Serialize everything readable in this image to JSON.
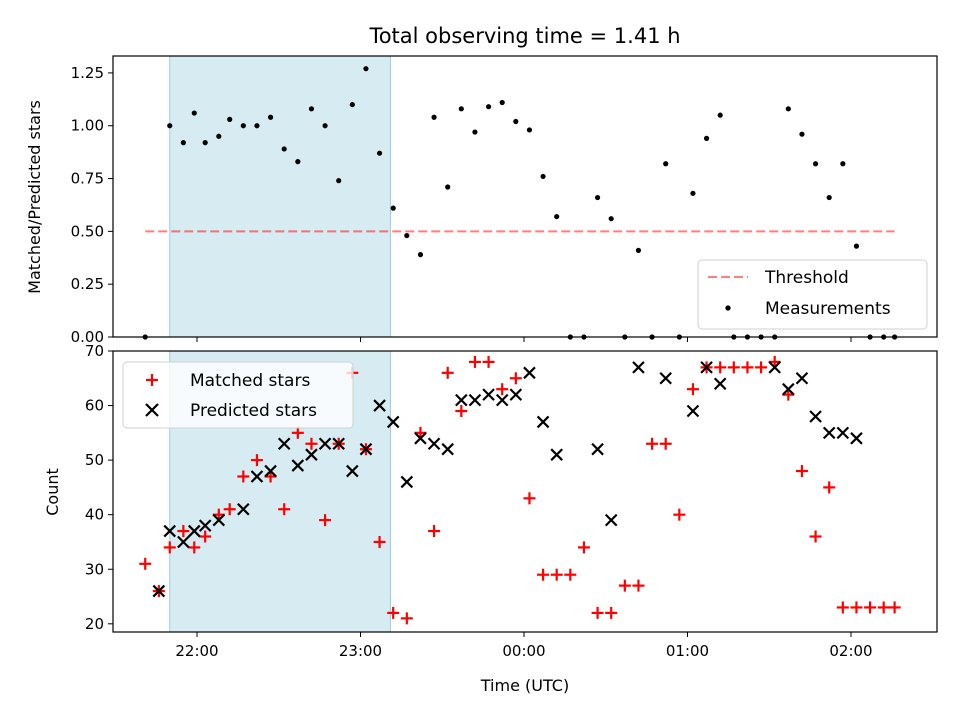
{
  "chart_data": [
    {
      "type": "scatter",
      "title": "Total observing time = 1.41 h",
      "xlabel": "",
      "ylabel": "Matched/Predicted stars",
      "ylim": [
        0,
        1.33
      ],
      "y_ticks": [
        "0.00",
        "0.25",
        "0.50",
        "0.75",
        "1.00",
        "1.25"
      ],
      "legend_placement": "lower right",
      "highlight_span": {
        "start": "21:50",
        "end": "23:11",
        "color": "#add8e6"
      },
      "threshold": {
        "name": "Threshold",
        "value": 0.5,
        "x_start": "21:41",
        "x_end": "02:16",
        "color": "#ff0000",
        "style": "dashed"
      },
      "series": [
        {
          "name": "Measurements",
          "marker": "dot",
          "color": "#000000",
          "x": [
            "21:41",
            "21:50",
            "21:55",
            "21:59",
            "22:03",
            "22:08",
            "22:12",
            "22:17",
            "22:22",
            "22:27",
            "22:32",
            "22:37",
            "22:42",
            "22:47",
            "22:52",
            "22:57",
            "23:02",
            "23:07",
            "23:12",
            "23:17",
            "23:22",
            "23:27",
            "23:32",
            "23:37",
            "23:42",
            "23:47",
            "23:52",
            "23:57",
            "00:02",
            "00:07",
            "00:12",
            "00:17",
            "00:22",
            "00:27",
            "00:32",
            "00:37",
            "00:42",
            "00:47",
            "00:52",
            "00:57",
            "01:02",
            "01:07",
            "01:12",
            "01:17",
            "01:22",
            "01:27",
            "01:32",
            "01:37",
            "01:42",
            "01:47",
            "01:52",
            "01:57",
            "02:02",
            "02:07",
            "02:12",
            "02:16"
          ],
          "y": [
            0.0,
            1.0,
            0.92,
            1.06,
            0.92,
            0.95,
            1.03,
            1.0,
            1.0,
            1.04,
            0.89,
            0.83,
            1.08,
            1.0,
            0.74,
            1.1,
            1.27,
            0.87,
            0.61,
            0.48,
            0.39,
            1.04,
            0.71,
            1.08,
            0.97,
            1.09,
            1.11,
            1.02,
            0.98,
            0.76,
            0.57,
            0.0,
            0.0,
            0.66,
            0.56,
            0.0,
            0.41,
            0.0,
            0.82,
            0.0,
            0.68,
            0.94,
            1.05,
            0.0,
            0.0,
            0.0,
            0.0,
            1.08,
            0.96,
            0.82,
            0.66,
            0.82,
            0.43,
            0.0,
            0.0,
            0.0
          ]
        }
      ]
    },
    {
      "type": "scatter",
      "title": "",
      "xlabel": "Time (UTC)",
      "ylabel": "Count",
      "ylim": [
        18.5,
        70
      ],
      "y_ticks": [
        "20",
        "30",
        "40",
        "50",
        "60",
        "70"
      ],
      "x_ticks": [
        "22:00",
        "23:00",
        "00:00",
        "01:00",
        "02:00"
      ],
      "legend_placement": "upper left",
      "highlight_span": {
        "start": "21:50",
        "end": "23:11",
        "color": "#add8e6"
      },
      "series": [
        {
          "name": "Matched stars",
          "marker": "plus",
          "color": "#ff0000",
          "x": [
            "21:41",
            "21:46",
            "21:50",
            "21:55",
            "21:59",
            "22:03",
            "22:08",
            "22:12",
            "22:17",
            "22:22",
            "22:27",
            "22:32",
            "22:37",
            "22:42",
            "22:47",
            "22:52",
            "22:57",
            "23:02",
            "23:07",
            "23:12",
            "23:17",
            "23:22",
            "23:27",
            "23:32",
            "23:37",
            "23:42",
            "23:47",
            "23:52",
            "23:57",
            "00:02",
            "00:07",
            "00:12",
            "00:17",
            "00:22",
            "00:27",
            "00:32",
            "00:37",
            "00:42",
            "00:47",
            "00:52",
            "00:57",
            "01:02",
            "01:07",
            "01:12",
            "01:17",
            "01:22",
            "01:27",
            "01:32",
            "01:37",
            "01:42",
            "01:47",
            "01:52",
            "01:57",
            "02:02",
            "02:07",
            "02:12",
            "02:16"
          ],
          "y": [
            31,
            26,
            34,
            37,
            34,
            36,
            40,
            41,
            47,
            50,
            47,
            41,
            55,
            53,
            39,
            53,
            66,
            52,
            35,
            22,
            21,
            55,
            37,
            66,
            59,
            68,
            68,
            63,
            65,
            43,
            29,
            29,
            29,
            34,
            22,
            22,
            27,
            27,
            53,
            53,
            40,
            63,
            67,
            67,
            67,
            67,
            67,
            68,
            62,
            48,
            36,
            45,
            23,
            23,
            23,
            23,
            23
          ]
        },
        {
          "name": "Predicted stars",
          "marker": "x",
          "color": "#000000",
          "x": [
            "21:46",
            "21:50",
            "21:55",
            "21:59",
            "22:03",
            "22:08",
            "22:17",
            "22:22",
            "22:27",
            "22:32",
            "22:37",
            "22:42",
            "22:47",
            "22:52",
            "22:57",
            "23:02",
            "23:07",
            "23:12",
            "23:17",
            "23:22",
            "23:27",
            "23:32",
            "23:37",
            "23:42",
            "23:47",
            "23:52",
            "23:57",
            "00:02",
            "00:07",
            "00:12",
            "00:27",
            "00:32",
            "00:42",
            "00:52",
            "01:02",
            "01:07",
            "01:12",
            "01:32",
            "01:37",
            "01:42",
            "01:47",
            "01:52",
            "01:57",
            "02:02"
          ],
          "y": [
            26,
            37,
            35,
            37,
            38,
            39,
            41,
            47,
            48,
            53,
            49,
            51,
            53,
            53,
            48,
            52,
            60,
            57,
            46,
            54,
            53,
            52,
            61,
            61,
            62,
            61,
            62,
            66,
            57,
            51,
            52,
            39,
            67,
            65,
            59,
            67,
            64,
            67,
            63,
            65,
            58,
            55,
            55,
            54
          ]
        }
      ]
    }
  ]
}
